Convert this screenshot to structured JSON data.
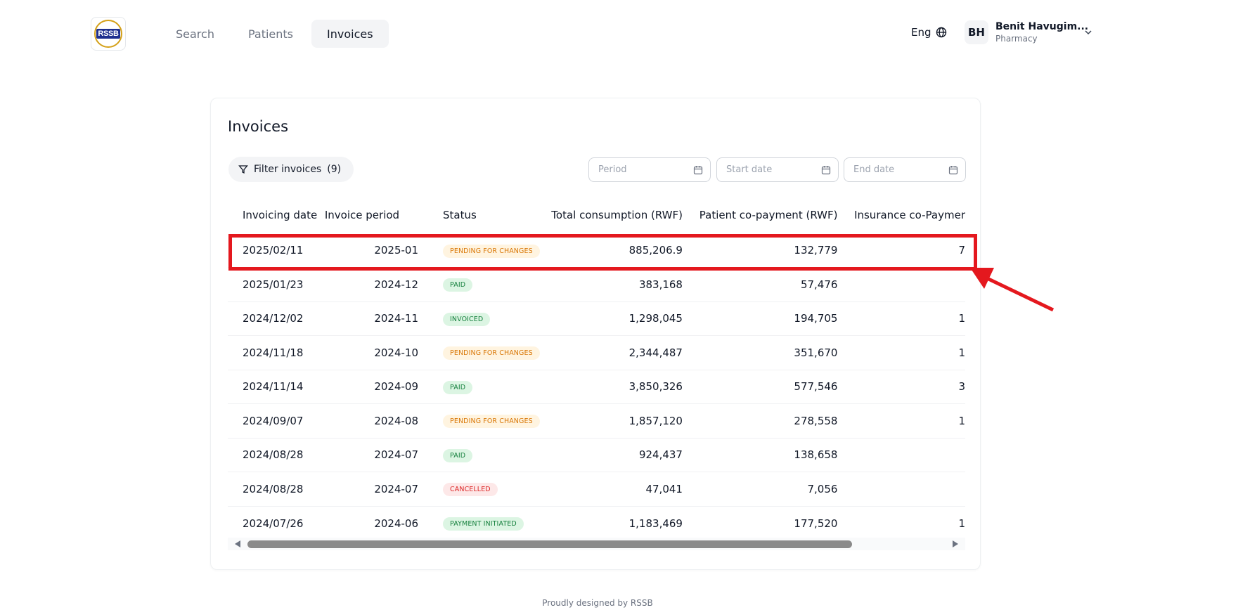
{
  "header": {
    "logo_text": "RSSB",
    "nav": [
      {
        "label": "Search"
      },
      {
        "label": "Patients"
      },
      {
        "label": "Invoices"
      }
    ],
    "language": "Eng",
    "user": {
      "initials": "BH",
      "name": "Benit Havugim...",
      "role": "Pharmacy"
    }
  },
  "card": {
    "title": "Invoices",
    "filter_label": "Filter invoices",
    "filter_count": "(9)",
    "period_placeholder": "Period",
    "start_placeholder": "Start date",
    "end_placeholder": "End date"
  },
  "table": {
    "columns": [
      "Invoicing date",
      "Invoice period",
      "Status",
      "Total consumption (RWF)",
      "Patient co-payment (RWF)",
      "Insurance co-Paymer"
    ],
    "rows": [
      {
        "date": "2025/02/11",
        "period": "2025-01",
        "status": "PENDING FOR CHANGES",
        "status_kind": "pending",
        "total": "885,206.9",
        "patient": "132,779",
        "insurance": "7"
      },
      {
        "date": "2025/01/23",
        "period": "2024-12",
        "status": "PAID",
        "status_kind": "paid",
        "total": "383,168",
        "patient": "57,476",
        "insurance": ""
      },
      {
        "date": "2024/12/02",
        "period": "2024-11",
        "status": "INVOICED",
        "status_kind": "invoiced",
        "total": "1,298,045",
        "patient": "194,705",
        "insurance": "1"
      },
      {
        "date": "2024/11/18",
        "period": "2024-10",
        "status": "PENDING FOR CHANGES",
        "status_kind": "pending",
        "total": "2,344,487",
        "patient": "351,670",
        "insurance": "1"
      },
      {
        "date": "2024/11/14",
        "period": "2024-09",
        "status": "PAID",
        "status_kind": "paid",
        "total": "3,850,326",
        "patient": "577,546",
        "insurance": "3"
      },
      {
        "date": "2024/09/07",
        "period": "2024-08",
        "status": "PENDING FOR CHANGES",
        "status_kind": "pending",
        "total": "1,857,120",
        "patient": "278,558",
        "insurance": "1"
      },
      {
        "date": "2024/08/28",
        "period": "2024-07",
        "status": "PAID",
        "status_kind": "paid",
        "total": "924,437",
        "patient": "138,658",
        "insurance": ""
      },
      {
        "date": "2024/08/28",
        "period": "2024-07",
        "status": "CANCELLED",
        "status_kind": "cancelled",
        "total": "47,041",
        "patient": "7,056",
        "insurance": ""
      },
      {
        "date": "2024/07/26",
        "period": "2024-06",
        "status": "PAYMENT INITIATED",
        "status_kind": "initiated",
        "total": "1,183,469",
        "patient": "177,520",
        "insurance": "1"
      }
    ]
  },
  "annotation_color": "#e4181e",
  "footer": "Proudly designed by RSSB"
}
